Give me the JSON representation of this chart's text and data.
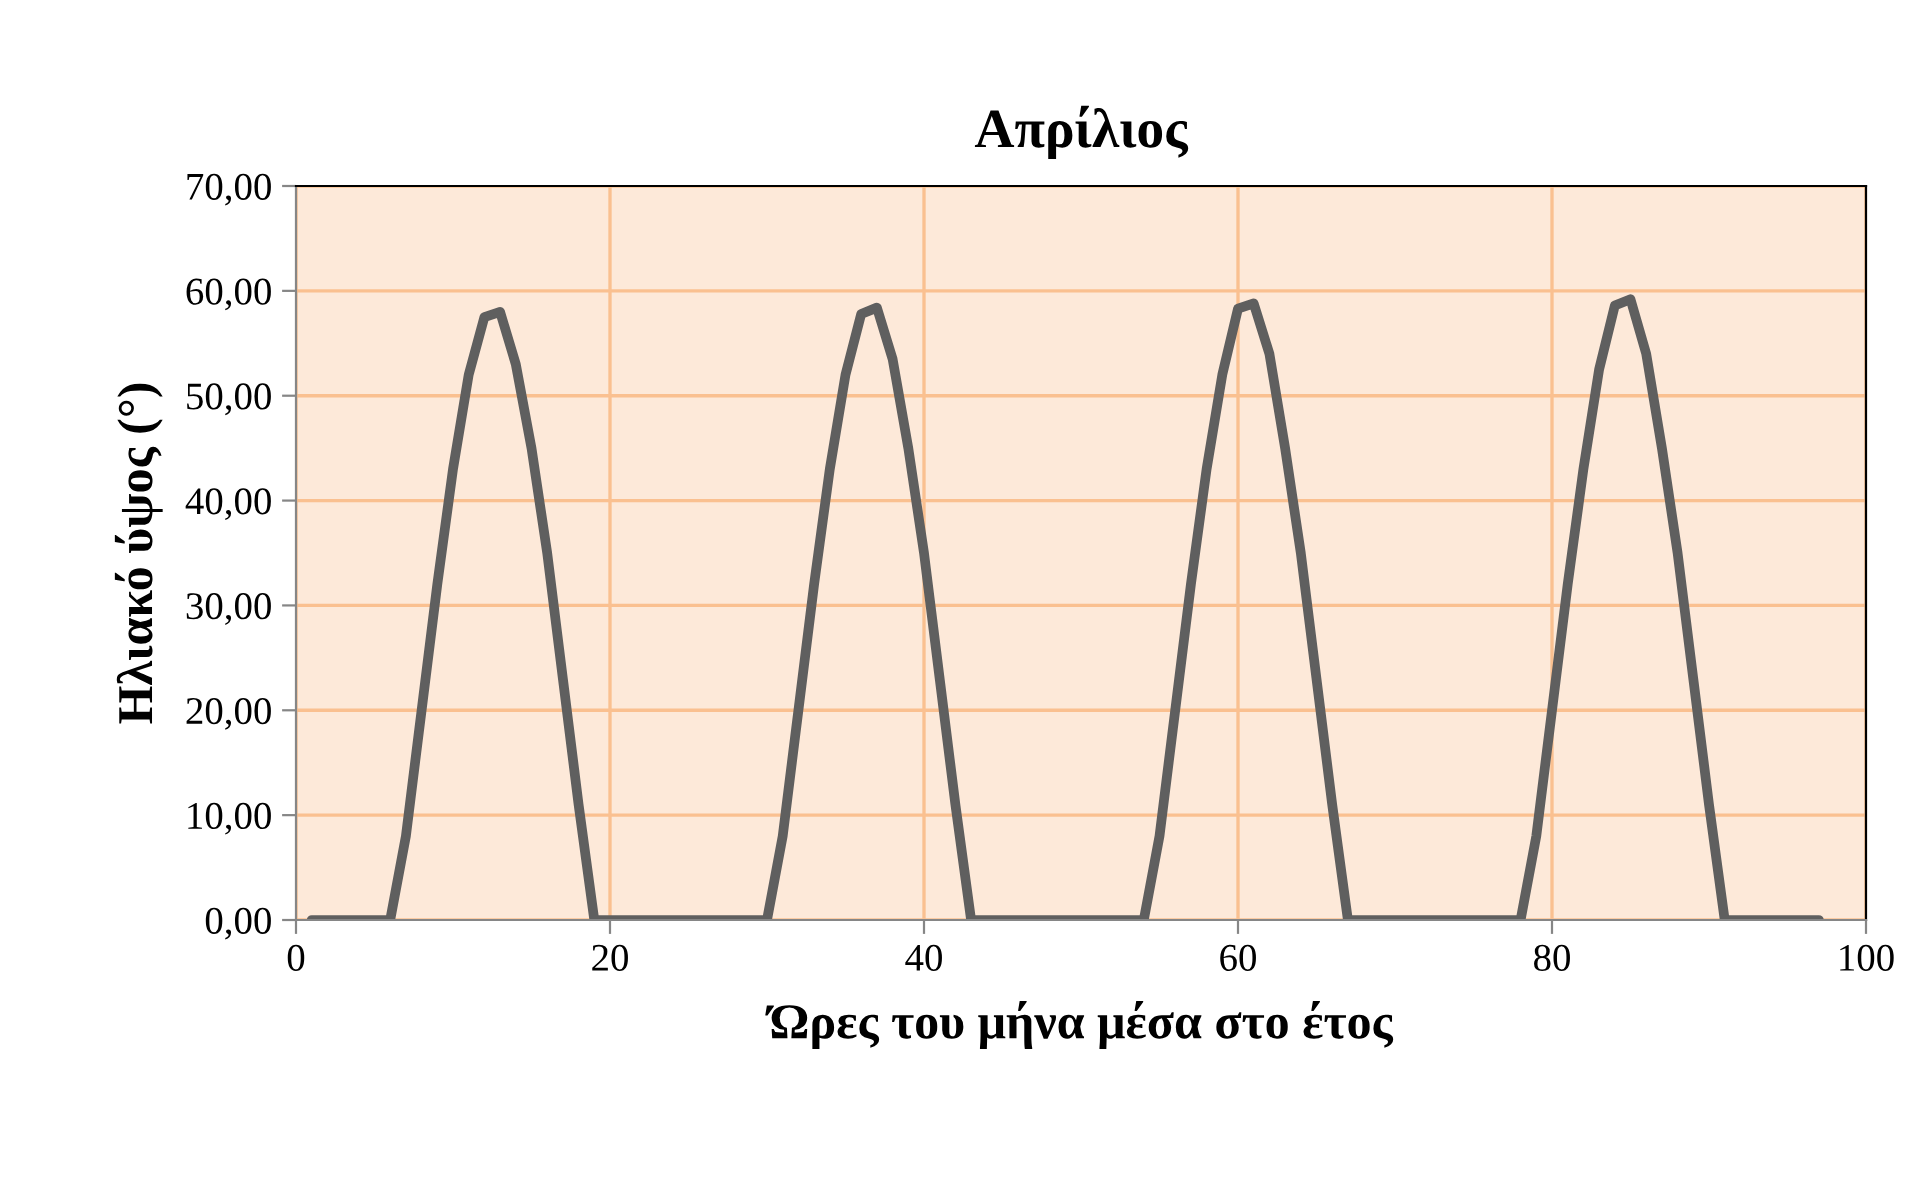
{
  "chart_data": {
    "type": "line",
    "title": "Απρίλιος",
    "xlabel": "Ώρες του μήνα μέσα στο έτος",
    "ylabel": "Ηλιακό ύψος (°)",
    "x": [
      1,
      2,
      3,
      4,
      5,
      6,
      7,
      8,
      9,
      10,
      11,
      12,
      13,
      14,
      15,
      16,
      17,
      18,
      19,
      20,
      21,
      22,
      23,
      24,
      25,
      26,
      27,
      28,
      29,
      30,
      31,
      32,
      33,
      34,
      35,
      36,
      37,
      38,
      39,
      40,
      41,
      42,
      43,
      44,
      45,
      46,
      47,
      48,
      49,
      50,
      51,
      52,
      53,
      54,
      55,
      56,
      57,
      58,
      59,
      60,
      61,
      62,
      63,
      64,
      65,
      66,
      67,
      68,
      69,
      70,
      71,
      72,
      73,
      74,
      75,
      76,
      77,
      78,
      79,
      80,
      81,
      82,
      83,
      84,
      85,
      86,
      87,
      88,
      89,
      90,
      91,
      92,
      93,
      94,
      95,
      96,
      97
    ],
    "series": [
      {
        "color": "#5f5f5f",
        "values": [
          0,
          0,
          0,
          0,
          0,
          0,
          8,
          20,
          32,
          43,
          52,
          57.5,
          58,
          53,
          45,
          35,
          23,
          11,
          0,
          0,
          0,
          0,
          0,
          0,
          0,
          0,
          0,
          0,
          0,
          0,
          8,
          20,
          32,
          43,
          52,
          57.8,
          58.4,
          53.5,
          45,
          35,
          23,
          11,
          0,
          0,
          0,
          0,
          0,
          0,
          0,
          0,
          0,
          0,
          0,
          0,
          8,
          20,
          32,
          43,
          52,
          58.3,
          58.8,
          54,
          45,
          35,
          23,
          11,
          0,
          0,
          0,
          0,
          0,
          0,
          0,
          0,
          0,
          0,
          0,
          0,
          8,
          20,
          32,
          43,
          52.5,
          58.6,
          59.2,
          54,
          45,
          35,
          23,
          11,
          0,
          0,
          0,
          0,
          0,
          0,
          0
        ]
      }
    ],
    "xlim": [
      0,
      100
    ],
    "xticks": [
      0,
      20,
      40,
      60,
      80,
      100
    ],
    "ylim": [
      0,
      70
    ],
    "yticks": [
      {
        "value": 0,
        "label": "0,00"
      },
      {
        "value": 10,
        "label": "10,00"
      },
      {
        "value": 20,
        "label": "20,00"
      },
      {
        "value": 30,
        "label": "30,00"
      },
      {
        "value": 40,
        "label": "40,00"
      },
      {
        "value": 50,
        "label": "50,00"
      },
      {
        "value": 60,
        "label": "60,00"
      },
      {
        "value": 70,
        "label": "70,00"
      }
    ],
    "grid": true,
    "marker": "none",
    "line_style": "solid",
    "legend": false
  }
}
